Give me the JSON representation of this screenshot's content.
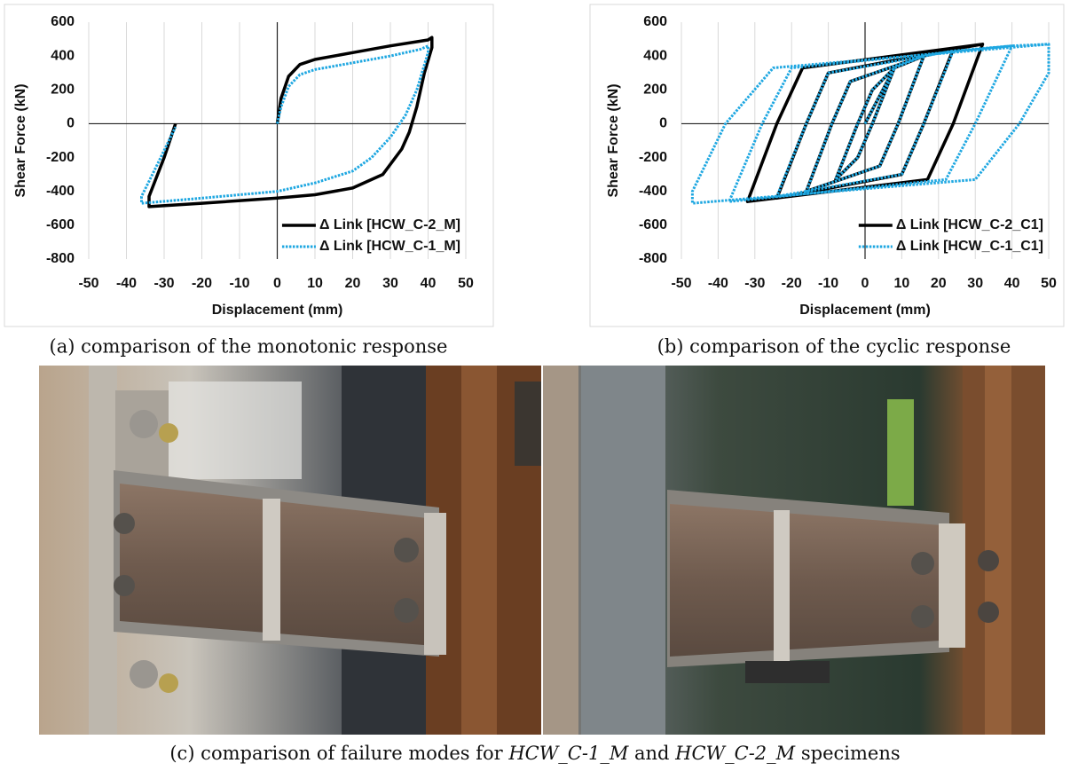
{
  "chart_data": [
    {
      "type": "line",
      "caption": "(a) comparison of the monotonic response",
      "x_label": "Displacement (mm)",
      "y_label": "Shear Force (kN)",
      "xlim": [
        -50,
        50
      ],
      "xticks": [
        -50,
        -40,
        -30,
        -20,
        -10,
        0,
        10,
        20,
        30,
        40,
        50
      ],
      "ylim": [
        -800,
        600
      ],
      "yticks": [
        -800,
        -600,
        -400,
        -200,
        0,
        200,
        400,
        600
      ],
      "grid": "x",
      "legend": "lower right",
      "series": [
        {
          "name": "Δ Link [HCW_C-2_M]",
          "color": "#000000",
          "style": "solid",
          "x": [
            0,
            1,
            3,
            6,
            10,
            20,
            30,
            40,
            41,
            41,
            39,
            37,
            35,
            33,
            28,
            20,
            10,
            0,
            -20,
            -34,
            -34,
            -30,
            -27
          ],
          "values": [
            0,
            150,
            280,
            350,
            380,
            420,
            460,
            495,
            510,
            450,
            300,
            100,
            -50,
            -150,
            -300,
            -380,
            -420,
            -440,
            -470,
            -490,
            -430,
            -200,
            0
          ]
        },
        {
          "name": "Δ Link [HCW_C-1_M]",
          "color": "#1ea7e1",
          "style": "dotted",
          "x": [
            0,
            1,
            3,
            6,
            10,
            20,
            30,
            38,
            40,
            40,
            37,
            34,
            30,
            25,
            20,
            10,
            0,
            -20,
            -36,
            -36,
            -32,
            -27
          ],
          "values": [
            0,
            100,
            220,
            290,
            320,
            360,
            400,
            440,
            460,
            420,
            200,
            50,
            -80,
            -200,
            -280,
            -350,
            -400,
            -440,
            -470,
            -430,
            -250,
            -20
          ]
        }
      ]
    },
    {
      "type": "line",
      "caption": "(b) comparison of the cyclic response",
      "x_label": "Displacement (mm)",
      "y_label": "Shear Force (kN)",
      "xlim": [
        -50,
        50
      ],
      "xticks": [
        -50,
        -40,
        -30,
        -20,
        -10,
        0,
        10,
        20,
        30,
        40,
        50
      ],
      "ylim": [
        -800,
        600
      ],
      "yticks": [
        -800,
        -600,
        -400,
        -200,
        0,
        200,
        400,
        600
      ],
      "grid": "x",
      "legend": "lower right",
      "series": [
        {
          "name": "Δ Link [HCW_C-2_C1]",
          "color": "#000000",
          "style": "solid",
          "x": [
            0,
            8,
            2,
            -2,
            -8,
            -2,
            2,
            8,
            16,
            9,
            4,
            -16,
            -9,
            -4,
            16,
            24,
            16,
            10,
            -24,
            -16,
            -10,
            24,
            32,
            24,
            17,
            -32,
            -24,
            -17,
            32
          ],
          "values": [
            0,
            330,
            0,
            -200,
            -330,
            0,
            200,
            330,
            400,
            0,
            -250,
            -400,
            0,
            250,
            400,
            440,
            0,
            -300,
            -440,
            0,
            300,
            440,
            470,
            0,
            -330,
            -460,
            0,
            330,
            470
          ]
        },
        {
          "name": "Δ Link [HCW_C-1_C1]",
          "color": "#1ea7e1",
          "style": "dotted",
          "x": [
            0,
            8,
            2,
            -2,
            -8,
            -2,
            2,
            8,
            16,
            9,
            4,
            -16,
            -9,
            -4,
            16,
            24,
            16,
            10,
            -24,
            -16,
            -10,
            24,
            40,
            30,
            22,
            -37,
            -28,
            -20,
            40,
            50,
            50,
            42,
            30,
            -47,
            -47,
            -38,
            -25,
            50
          ],
          "values": [
            0,
            330,
            0,
            -200,
            -330,
            0,
            200,
            330,
            400,
            0,
            -250,
            -400,
            0,
            250,
            400,
            430,
            0,
            -300,
            -430,
            0,
            300,
            430,
            460,
            0,
            -330,
            -460,
            0,
            330,
            460,
            470,
            300,
            0,
            -330,
            -470,
            -400,
            0,
            330,
            470
          ]
        }
      ]
    }
  ],
  "photo_panel": {
    "caption_parts": [
      "(c) comparison of failure modes for ",
      "HCW_C-1_M",
      " and ",
      "HCW_C-2_M",
      " specimens"
    ]
  }
}
